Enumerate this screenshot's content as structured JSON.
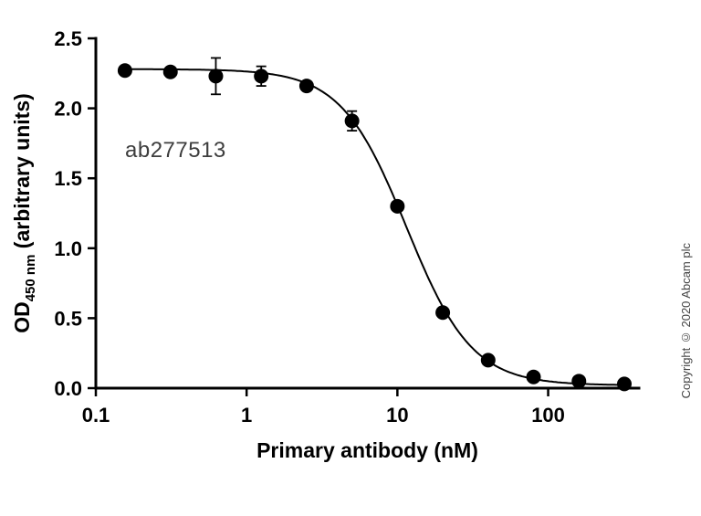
{
  "chart_data": {
    "type": "scatter",
    "title": "",
    "xlabel": "Primary antibody (nM)",
    "ylabel": {
      "prefix": "OD",
      "subscript": "450 nm",
      "suffix": " (arbitrary units)"
    },
    "xscale": "log",
    "xlim": [
      0.1,
      400
    ],
    "ylim": [
      0,
      2.5
    ],
    "xticks": [
      0.1,
      1,
      10,
      100
    ],
    "yticks": [
      0,
      0.5,
      1,
      1.5,
      2,
      2.5
    ],
    "x": [
      0.156,
      0.3125,
      0.625,
      1.25,
      2.5,
      5,
      10,
      20,
      40,
      80,
      160,
      320
    ],
    "y": [
      2.27,
      2.26,
      2.23,
      2.23,
      2.16,
      1.91,
      1.3,
      0.54,
      0.2,
      0.08,
      0.05,
      0.03
    ],
    "yerr": [
      0.02,
      0.02,
      0.13,
      0.07,
      0.02,
      0.07,
      0.02,
      0.02,
      0.02,
      0.02,
      0.02,
      0.02
    ],
    "fit": {
      "model": "4PL",
      "top": 2.28,
      "bottom": 0.02,
      "ic50": 11.5,
      "hill": 2.0
    },
    "annotation": "ab277513",
    "grid": false,
    "legend": null,
    "marker_color": "#000000",
    "line_color": "#000000"
  },
  "copyright": "Copyright © 2020 Abcam plc"
}
